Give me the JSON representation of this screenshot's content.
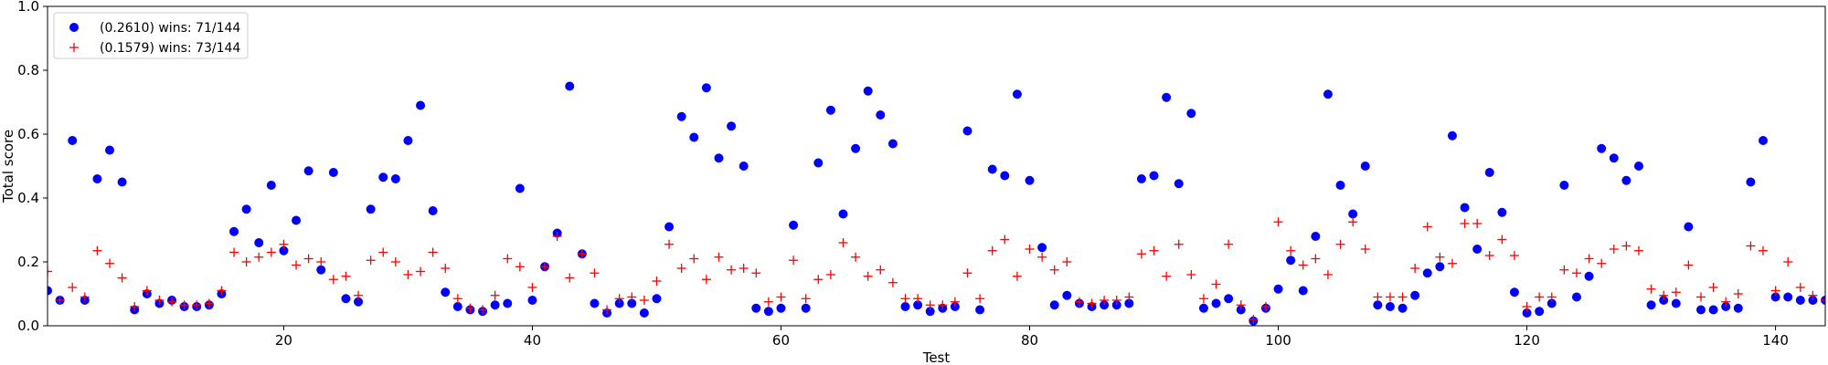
{
  "chart_data": {
    "type": "scatter",
    "title": "",
    "xlabel": "Test",
    "ylabel": "Total score",
    "xlim": [
      1,
      144
    ],
    "ylim": [
      0.0,
      1.0
    ],
    "xticks": [
      20,
      40,
      60,
      80,
      100,
      120,
      140
    ],
    "yticks": [
      0.0,
      0.2,
      0.4,
      0.6,
      0.8,
      1.0
    ],
    "legend_position": "top-left",
    "grid": false,
    "x": [
      1,
      2,
      3,
      4,
      5,
      6,
      7,
      8,
      9,
      10,
      11,
      12,
      13,
      14,
      15,
      16,
      17,
      18,
      19,
      20,
      21,
      22,
      23,
      24,
      25,
      26,
      27,
      28,
      29,
      30,
      31,
      32,
      33,
      34,
      35,
      36,
      37,
      38,
      39,
      40,
      41,
      42,
      43,
      44,
      45,
      46,
      47,
      48,
      49,
      50,
      51,
      52,
      53,
      54,
      55,
      56,
      57,
      58,
      59,
      60,
      61,
      62,
      63,
      64,
      65,
      66,
      67,
      68,
      69,
      70,
      71,
      72,
      73,
      74,
      75,
      76,
      77,
      78,
      79,
      80,
      81,
      82,
      83,
      84,
      85,
      86,
      87,
      88,
      89,
      90,
      91,
      92,
      93,
      94,
      95,
      96,
      97,
      98,
      99,
      100,
      101,
      102,
      103,
      104,
      105,
      106,
      107,
      108,
      109,
      110,
      111,
      112,
      113,
      114,
      115,
      116,
      117,
      118,
      119,
      120,
      121,
      122,
      123,
      124,
      125,
      126,
      127,
      128,
      129,
      130,
      131,
      132,
      133,
      134,
      135,
      136,
      137,
      138,
      139,
      140,
      141,
      142,
      143,
      144
    ],
    "series": [
      {
        "name": "(0.2610) wins: 71/144",
        "marker": "circle",
        "color": "#0000ff",
        "values": [
          0.11,
          0.08,
          0.58,
          0.08,
          0.46,
          0.55,
          0.45,
          0.05,
          0.1,
          0.07,
          0.08,
          0.06,
          0.06,
          0.065,
          0.1,
          0.295,
          0.365,
          0.26,
          0.44,
          0.235,
          0.33,
          0.485,
          0.175,
          0.48,
          0.085,
          0.075,
          0.365,
          0.465,
          0.46,
          0.58,
          0.69,
          0.36,
          0.105,
          0.06,
          0.05,
          0.045,
          0.065,
          0.07,
          0.43,
          0.08,
          0.185,
          0.29,
          0.75,
          0.225,
          0.07,
          0.04,
          0.07,
          0.07,
          0.04,
          0.085,
          0.31,
          0.655,
          0.59,
          0.745,
          0.525,
          0.625,
          0.5,
          0.055,
          0.045,
          0.055,
          0.315,
          0.055,
          0.51,
          0.675,
          0.35,
          0.555,
          0.735,
          0.66,
          0.57,
          0.06,
          0.065,
          0.045,
          0.055,
          0.06,
          0.61,
          0.05,
          0.49,
          0.47,
          0.725,
          0.455,
          0.245,
          0.065,
          0.095,
          0.07,
          0.06,
          0.065,
          0.065,
          0.07,
          0.46,
          0.47,
          0.715,
          0.445,
          0.665,
          0.055,
          0.07,
          0.085,
          0.05,
          0.015,
          0.055,
          0.115,
          0.205,
          0.11,
          0.28,
          0.725,
          0.44,
          0.35,
          0.5,
          0.065,
          0.06,
          0.055,
          0.095,
          0.165,
          0.185,
          0.595,
          0.37,
          0.24,
          0.48,
          0.355,
          0.105,
          0.04,
          0.045,
          0.07,
          0.44,
          0.09,
          0.155,
          0.555,
          0.525,
          0.455,
          0.5,
          0.065,
          0.08,
          0.07,
          0.31,
          0.05,
          0.05,
          0.06,
          0.055,
          0.45,
          0.58,
          0.09,
          0.09,
          0.08,
          0.08,
          0.08
        ]
      },
      {
        "name": "(0.1579) wins: 73/144",
        "marker": "plus",
        "color": "#ff0000",
        "values": [
          0.17,
          0.08,
          0.12,
          0.09,
          0.235,
          0.195,
          0.15,
          0.06,
          0.11,
          0.08,
          0.075,
          0.065,
          0.065,
          0.07,
          0.11,
          0.23,
          0.2,
          0.215,
          0.23,
          0.255,
          0.19,
          0.21,
          0.2,
          0.145,
          0.155,
          0.095,
          0.205,
          0.23,
          0.2,
          0.16,
          0.17,
          0.23,
          0.18,
          0.085,
          0.055,
          0.05,
          0.095,
          0.21,
          0.185,
          0.12,
          0.185,
          0.28,
          0.15,
          0.225,
          0.165,
          0.05,
          0.085,
          0.09,
          0.08,
          0.14,
          0.255,
          0.18,
          0.21,
          0.145,
          0.215,
          0.175,
          0.18,
          0.165,
          0.075,
          0.09,
          0.205,
          0.085,
          0.145,
          0.16,
          0.26,
          0.215,
          0.155,
          0.175,
          0.135,
          0.085,
          0.085,
          0.065,
          0.065,
          0.075,
          0.165,
          0.085,
          0.235,
          0.27,
          0.155,
          0.24,
          0.215,
          0.175,
          0.2,
          0.075,
          0.07,
          0.08,
          0.08,
          0.09,
          0.225,
          0.235,
          0.155,
          0.255,
          0.16,
          0.085,
          0.13,
          0.255,
          0.065,
          0.02,
          0.06,
          0.325,
          0.235,
          0.19,
          0.21,
          0.16,
          0.255,
          0.325,
          0.24,
          0.09,
          0.09,
          0.09,
          0.18,
          0.31,
          0.215,
          0.195,
          0.32,
          0.32,
          0.22,
          0.27,
          0.22,
          0.06,
          0.09,
          0.09,
          0.175,
          0.165,
          0.21,
          0.195,
          0.24,
          0.25,
          0.235,
          0.115,
          0.095,
          0.105,
          0.19,
          0.09,
          0.12,
          0.075,
          0.1,
          0.25,
          0.235,
          0.11,
          0.2,
          0.12,
          0.095,
          0.08
        ]
      }
    ]
  }
}
